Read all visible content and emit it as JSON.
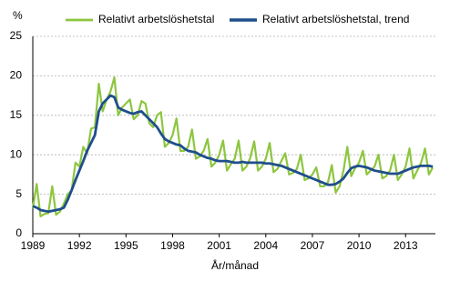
{
  "chart_data": {
    "type": "line",
    "y_label": "%",
    "x_label": "År/månad",
    "x": [
      1989,
      1989.25,
      1989.5,
      1989.75,
      1990,
      1990.25,
      1990.5,
      1990.75,
      1991,
      1991.25,
      1991.5,
      1991.75,
      1992,
      1992.25,
      1992.5,
      1992.75,
      1993,
      1993.25,
      1993.5,
      1993.75,
      1994,
      1994.25,
      1994.5,
      1994.75,
      1995,
      1995.25,
      1995.5,
      1995.75,
      1996,
      1996.25,
      1996.5,
      1996.75,
      1997,
      1997.25,
      1997.5,
      1997.75,
      1998,
      1998.25,
      1998.5,
      1998.75,
      1999,
      1999.25,
      1999.5,
      1999.75,
      2000,
      2000.25,
      2000.5,
      2000.75,
      2001,
      2001.25,
      2001.5,
      2001.75,
      2002,
      2002.25,
      2002.5,
      2002.75,
      2003,
      2003.25,
      2003.5,
      2003.75,
      2004,
      2004.25,
      2004.5,
      2004.75,
      2005,
      2005.25,
      2005.5,
      2005.75,
      2006,
      2006.25,
      2006.5,
      2006.75,
      2007,
      2007.25,
      2007.5,
      2007.75,
      2008,
      2008.25,
      2008.5,
      2008.75,
      2009,
      2009.25,
      2009.5,
      2009.75,
      2010,
      2010.25,
      2010.5,
      2010.75,
      2011,
      2011.25,
      2011.5,
      2011.75,
      2012,
      2012.25,
      2012.5,
      2012.75,
      2013,
      2013.25,
      2013.5,
      2013.75,
      2014,
      2014.25,
      2014.5,
      2014.75
    ],
    "series": [
      {
        "name": "Relativt arbetslöshetstal",
        "color": "#8dc63f",
        "width": 2.2,
        "values": [
          3.2,
          6.3,
          2.2,
          2.5,
          2.6,
          6.0,
          2.4,
          2.8,
          3.8,
          5.0,
          5.5,
          9.0,
          8.5,
          11.0,
          10.2,
          13.3,
          13.5,
          19.0,
          15.5,
          17.0,
          18.0,
          19.8,
          15.0,
          16.0,
          16.5,
          17.0,
          14.5,
          15.0,
          16.8,
          16.5,
          14.0,
          13.5,
          15.0,
          15.4,
          11.0,
          11.5,
          12.5,
          14.6,
          10.5,
          10.5,
          11.0,
          13.2,
          9.5,
          9.8,
          10.5,
          12.0,
          8.5,
          9.0,
          10.0,
          11.8,
          8.0,
          8.8,
          9.5,
          11.8,
          8.0,
          8.5,
          9.6,
          11.7,
          8.0,
          8.5,
          9.5,
          11.5,
          7.8,
          8.2,
          9.2,
          10.2,
          7.5,
          7.7,
          8.2,
          10.0,
          6.8,
          7.0,
          7.5,
          8.4,
          6.0,
          6.0,
          6.5,
          8.7,
          5.2,
          6.0,
          8.0,
          11.0,
          7.3,
          8.3,
          9.0,
          10.5,
          7.5,
          8.0,
          8.5,
          10.0,
          7.0,
          7.3,
          8.0,
          10.0,
          6.8,
          7.5,
          8.5,
          10.8,
          7.0,
          8.0,
          9.0,
          10.8,
          7.5,
          8.4
        ]
      },
      {
        "name": "Relativt arbetslöshetstal, trend",
        "color": "#1f4e8c",
        "width": 2.8,
        "values": [
          3.5,
          3.3,
          3.0,
          2.9,
          2.8,
          2.9,
          3.0,
          3.1,
          3.3,
          4.3,
          5.5,
          6.8,
          8.0,
          9.2,
          10.5,
          11.5,
          12.5,
          15.5,
          16.5,
          17.0,
          17.5,
          17.3,
          16.0,
          15.7,
          15.5,
          15.3,
          15.2,
          15.4,
          15.5,
          15.0,
          14.5,
          14.0,
          13.5,
          12.7,
          12.0,
          11.7,
          11.5,
          11.3,
          11.2,
          10.8,
          10.5,
          10.4,
          10.3,
          10.0,
          9.8,
          9.6,
          9.5,
          9.3,
          9.2,
          9.2,
          9.2,
          9.1,
          9.0,
          9.0,
          9.1,
          9.0,
          9.0,
          9.0,
          9.0,
          9.0,
          8.9,
          8.9,
          8.8,
          8.7,
          8.6,
          8.4,
          8.2,
          8.0,
          7.8,
          7.6,
          7.4,
          7.2,
          7.0,
          6.8,
          6.6,
          6.4,
          6.2,
          6.2,
          6.3,
          6.6,
          7.0,
          7.7,
          8.3,
          8.5,
          8.6,
          8.5,
          8.4,
          8.2,
          8.0,
          7.9,
          7.8,
          7.7,
          7.6,
          7.6,
          7.6,
          7.8,
          8.0,
          8.2,
          8.4,
          8.5,
          8.6,
          8.6,
          8.6,
          8.5
        ]
      }
    ],
    "xlim": [
      1989,
      2014.92
    ],
    "xticks": [
      1989,
      1992,
      1995,
      1998,
      2001,
      2004,
      2007,
      2010,
      2013
    ],
    "ylim": [
      0,
      25
    ],
    "yticks": [
      0,
      5,
      10,
      15,
      20,
      25
    ],
    "grid": true
  }
}
